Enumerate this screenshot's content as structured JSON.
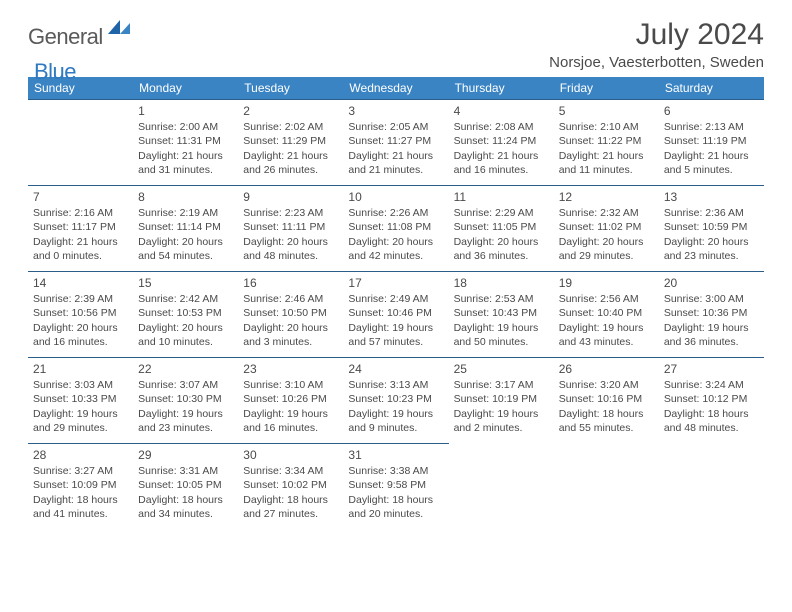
{
  "logo": {
    "word1": "General",
    "word2": "Blue"
  },
  "header": {
    "title": "July 2024",
    "location": "Norsjoe, Vaesterbotten, Sweden"
  },
  "colors": {
    "header_bg": "#3b84c4",
    "header_text": "#ffffff",
    "cell_border": "#2a5d8a",
    "body_text": "#4a4a4a",
    "logo_gray": "#5a5a5a",
    "logo_blue": "#2f7ac0"
  },
  "weekdays": [
    "Sunday",
    "Monday",
    "Tuesday",
    "Wednesday",
    "Thursday",
    "Friday",
    "Saturday"
  ],
  "weeks": [
    [
      null,
      {
        "n": "1",
        "sr": "Sunrise: 2:00 AM",
        "ss": "Sunset: 11:31 PM",
        "d1": "Daylight: 21 hours",
        "d2": "and 31 minutes."
      },
      {
        "n": "2",
        "sr": "Sunrise: 2:02 AM",
        "ss": "Sunset: 11:29 PM",
        "d1": "Daylight: 21 hours",
        "d2": "and 26 minutes."
      },
      {
        "n": "3",
        "sr": "Sunrise: 2:05 AM",
        "ss": "Sunset: 11:27 PM",
        "d1": "Daylight: 21 hours",
        "d2": "and 21 minutes."
      },
      {
        "n": "4",
        "sr": "Sunrise: 2:08 AM",
        "ss": "Sunset: 11:24 PM",
        "d1": "Daylight: 21 hours",
        "d2": "and 16 minutes."
      },
      {
        "n": "5",
        "sr": "Sunrise: 2:10 AM",
        "ss": "Sunset: 11:22 PM",
        "d1": "Daylight: 21 hours",
        "d2": "and 11 minutes."
      },
      {
        "n": "6",
        "sr": "Sunrise: 2:13 AM",
        "ss": "Sunset: 11:19 PM",
        "d1": "Daylight: 21 hours",
        "d2": "and 5 minutes."
      }
    ],
    [
      {
        "n": "7",
        "sr": "Sunrise: 2:16 AM",
        "ss": "Sunset: 11:17 PM",
        "d1": "Daylight: 21 hours",
        "d2": "and 0 minutes."
      },
      {
        "n": "8",
        "sr": "Sunrise: 2:19 AM",
        "ss": "Sunset: 11:14 PM",
        "d1": "Daylight: 20 hours",
        "d2": "and 54 minutes."
      },
      {
        "n": "9",
        "sr": "Sunrise: 2:23 AM",
        "ss": "Sunset: 11:11 PM",
        "d1": "Daylight: 20 hours",
        "d2": "and 48 minutes."
      },
      {
        "n": "10",
        "sr": "Sunrise: 2:26 AM",
        "ss": "Sunset: 11:08 PM",
        "d1": "Daylight: 20 hours",
        "d2": "and 42 minutes."
      },
      {
        "n": "11",
        "sr": "Sunrise: 2:29 AM",
        "ss": "Sunset: 11:05 PM",
        "d1": "Daylight: 20 hours",
        "d2": "and 36 minutes."
      },
      {
        "n": "12",
        "sr": "Sunrise: 2:32 AM",
        "ss": "Sunset: 11:02 PM",
        "d1": "Daylight: 20 hours",
        "d2": "and 29 minutes."
      },
      {
        "n": "13",
        "sr": "Sunrise: 2:36 AM",
        "ss": "Sunset: 10:59 PM",
        "d1": "Daylight: 20 hours",
        "d2": "and 23 minutes."
      }
    ],
    [
      {
        "n": "14",
        "sr": "Sunrise: 2:39 AM",
        "ss": "Sunset: 10:56 PM",
        "d1": "Daylight: 20 hours",
        "d2": "and 16 minutes."
      },
      {
        "n": "15",
        "sr": "Sunrise: 2:42 AM",
        "ss": "Sunset: 10:53 PM",
        "d1": "Daylight: 20 hours",
        "d2": "and 10 minutes."
      },
      {
        "n": "16",
        "sr": "Sunrise: 2:46 AM",
        "ss": "Sunset: 10:50 PM",
        "d1": "Daylight: 20 hours",
        "d2": "and 3 minutes."
      },
      {
        "n": "17",
        "sr": "Sunrise: 2:49 AM",
        "ss": "Sunset: 10:46 PM",
        "d1": "Daylight: 19 hours",
        "d2": "and 57 minutes."
      },
      {
        "n": "18",
        "sr": "Sunrise: 2:53 AM",
        "ss": "Sunset: 10:43 PM",
        "d1": "Daylight: 19 hours",
        "d2": "and 50 minutes."
      },
      {
        "n": "19",
        "sr": "Sunrise: 2:56 AM",
        "ss": "Sunset: 10:40 PM",
        "d1": "Daylight: 19 hours",
        "d2": "and 43 minutes."
      },
      {
        "n": "20",
        "sr": "Sunrise: 3:00 AM",
        "ss": "Sunset: 10:36 PM",
        "d1": "Daylight: 19 hours",
        "d2": "and 36 minutes."
      }
    ],
    [
      {
        "n": "21",
        "sr": "Sunrise: 3:03 AM",
        "ss": "Sunset: 10:33 PM",
        "d1": "Daylight: 19 hours",
        "d2": "and 29 minutes."
      },
      {
        "n": "22",
        "sr": "Sunrise: 3:07 AM",
        "ss": "Sunset: 10:30 PM",
        "d1": "Daylight: 19 hours",
        "d2": "and 23 minutes."
      },
      {
        "n": "23",
        "sr": "Sunrise: 3:10 AM",
        "ss": "Sunset: 10:26 PM",
        "d1": "Daylight: 19 hours",
        "d2": "and 16 minutes."
      },
      {
        "n": "24",
        "sr": "Sunrise: 3:13 AM",
        "ss": "Sunset: 10:23 PM",
        "d1": "Daylight: 19 hours",
        "d2": "and 9 minutes."
      },
      {
        "n": "25",
        "sr": "Sunrise: 3:17 AM",
        "ss": "Sunset: 10:19 PM",
        "d1": "Daylight: 19 hours",
        "d2": "and 2 minutes."
      },
      {
        "n": "26",
        "sr": "Sunrise: 3:20 AM",
        "ss": "Sunset: 10:16 PM",
        "d1": "Daylight: 18 hours",
        "d2": "and 55 minutes."
      },
      {
        "n": "27",
        "sr": "Sunrise: 3:24 AM",
        "ss": "Sunset: 10:12 PM",
        "d1": "Daylight: 18 hours",
        "d2": "and 48 minutes."
      }
    ],
    [
      {
        "n": "28",
        "sr": "Sunrise: 3:27 AM",
        "ss": "Sunset: 10:09 PM",
        "d1": "Daylight: 18 hours",
        "d2": "and 41 minutes."
      },
      {
        "n": "29",
        "sr": "Sunrise: 3:31 AM",
        "ss": "Sunset: 10:05 PM",
        "d1": "Daylight: 18 hours",
        "d2": "and 34 minutes."
      },
      {
        "n": "30",
        "sr": "Sunrise: 3:34 AM",
        "ss": "Sunset: 10:02 PM",
        "d1": "Daylight: 18 hours",
        "d2": "and 27 minutes."
      },
      {
        "n": "31",
        "sr": "Sunrise: 3:38 AM",
        "ss": "Sunset: 9:58 PM",
        "d1": "Daylight: 18 hours",
        "d2": "and 20 minutes."
      },
      null,
      null,
      null
    ]
  ]
}
